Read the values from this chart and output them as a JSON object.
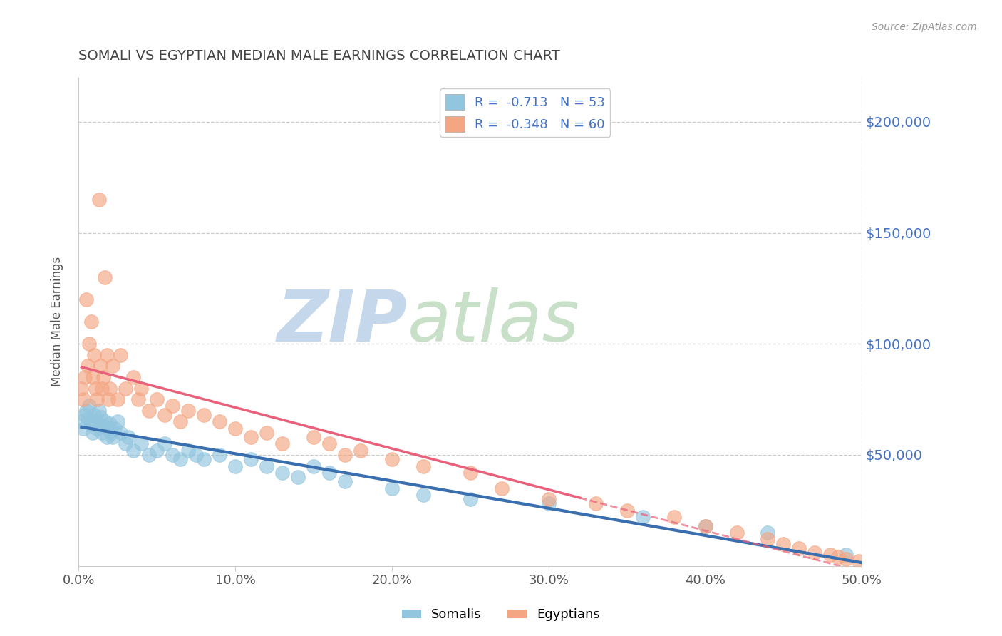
{
  "title": "SOMALI VS EGYPTIAN MEDIAN MALE EARNINGS CORRELATION CHART",
  "source_text": "Source: ZipAtlas.com",
  "ylabel": "Median Male Earnings",
  "xlim": [
    0.0,
    0.5
  ],
  "ylim": [
    0,
    220000
  ],
  "yticks": [
    0,
    50000,
    100000,
    150000,
    200000
  ],
  "ytick_labels": [
    "",
    "$50,000",
    "$100,000",
    "$150,000",
    "$200,000"
  ],
  "xtick_labels": [
    "0.0%",
    "",
    "",
    "",
    "",
    "",
    "",
    "",
    "",
    "",
    "10.0%",
    "",
    "",
    "",
    "",
    "",
    "",
    "",
    "",
    "",
    "20.0%",
    "",
    "",
    "",
    "",
    "",
    "",
    "",
    "",
    "",
    "30.0%",
    "",
    "",
    "",
    "",
    "",
    "",
    "",
    "",
    "",
    "40.0%",
    "",
    "",
    "",
    "",
    "",
    "",
    "",
    "",
    "",
    "50.0%"
  ],
  "xtick_vals": [
    0.0,
    0.1,
    0.2,
    0.3,
    0.4,
    0.5
  ],
  "xtick_display": [
    "0.0%",
    "10.0%",
    "20.0%",
    "30.0%",
    "40.0%",
    "50.0%"
  ],
  "somali_R": -0.713,
  "somali_N": 53,
  "egyptian_R": -0.348,
  "egyptian_N": 60,
  "somali_color": "#92c5de",
  "egyptian_color": "#f4a582",
  "somali_line_color": "#3a6faf",
  "egyptian_line_color": "#e8607a",
  "legend_text_color": "#4472c4",
  "title_color": "#444444",
  "ylabel_color": "#555555",
  "ytick_color": "#4472c4",
  "xtick_color": "#555555",
  "grid_color": "#cccccc",
  "watermark_zip_color": "#c8d8e8",
  "watermark_atlas_color": "#d8e8d8",
  "somali_x": [
    0.002,
    0.003,
    0.004,
    0.005,
    0.006,
    0.007,
    0.008,
    0.009,
    0.01,
    0.011,
    0.012,
    0.013,
    0.014,
    0.015,
    0.016,
    0.017,
    0.018,
    0.019,
    0.02,
    0.021,
    0.022,
    0.023,
    0.025,
    0.027,
    0.03,
    0.032,
    0.035,
    0.04,
    0.045,
    0.05,
    0.055,
    0.06,
    0.065,
    0.07,
    0.075,
    0.08,
    0.09,
    0.1,
    0.11,
    0.12,
    0.13,
    0.14,
    0.15,
    0.16,
    0.17,
    0.2,
    0.22,
    0.25,
    0.3,
    0.36,
    0.4,
    0.44,
    0.49
  ],
  "somali_y": [
    65000,
    62000,
    68000,
    70000,
    66000,
    72000,
    64000,
    60000,
    68000,
    65000,
    62000,
    70000,
    67000,
    60000,
    63000,
    65000,
    58000,
    62000,
    64000,
    60000,
    58000,
    62000,
    65000,
    60000,
    55000,
    58000,
    52000,
    55000,
    50000,
    52000,
    55000,
    50000,
    48000,
    52000,
    50000,
    48000,
    50000,
    45000,
    48000,
    45000,
    42000,
    40000,
    45000,
    42000,
    38000,
    35000,
    32000,
    30000,
    28000,
    22000,
    18000,
    15000,
    5000
  ],
  "egyptian_x": [
    0.002,
    0.003,
    0.004,
    0.005,
    0.006,
    0.007,
    0.008,
    0.009,
    0.01,
    0.011,
    0.012,
    0.013,
    0.014,
    0.015,
    0.016,
    0.017,
    0.018,
    0.019,
    0.02,
    0.022,
    0.025,
    0.027,
    0.03,
    0.035,
    0.038,
    0.04,
    0.045,
    0.05,
    0.055,
    0.06,
    0.065,
    0.07,
    0.08,
    0.09,
    0.1,
    0.11,
    0.12,
    0.13,
    0.15,
    0.16,
    0.17,
    0.18,
    0.2,
    0.22,
    0.25,
    0.27,
    0.3,
    0.33,
    0.35,
    0.38,
    0.4,
    0.42,
    0.44,
    0.45,
    0.46,
    0.47,
    0.48,
    0.485,
    0.49,
    0.498
  ],
  "egyptian_y": [
    80000,
    75000,
    85000,
    120000,
    90000,
    100000,
    110000,
    85000,
    95000,
    80000,
    75000,
    165000,
    90000,
    80000,
    85000,
    130000,
    95000,
    75000,
    80000,
    90000,
    75000,
    95000,
    80000,
    85000,
    75000,
    80000,
    70000,
    75000,
    68000,
    72000,
    65000,
    70000,
    68000,
    65000,
    62000,
    58000,
    60000,
    55000,
    58000,
    55000,
    50000,
    52000,
    48000,
    45000,
    42000,
    35000,
    30000,
    28000,
    25000,
    22000,
    18000,
    15000,
    12000,
    10000,
    8000,
    6000,
    5000,
    4000,
    3000,
    2000
  ]
}
